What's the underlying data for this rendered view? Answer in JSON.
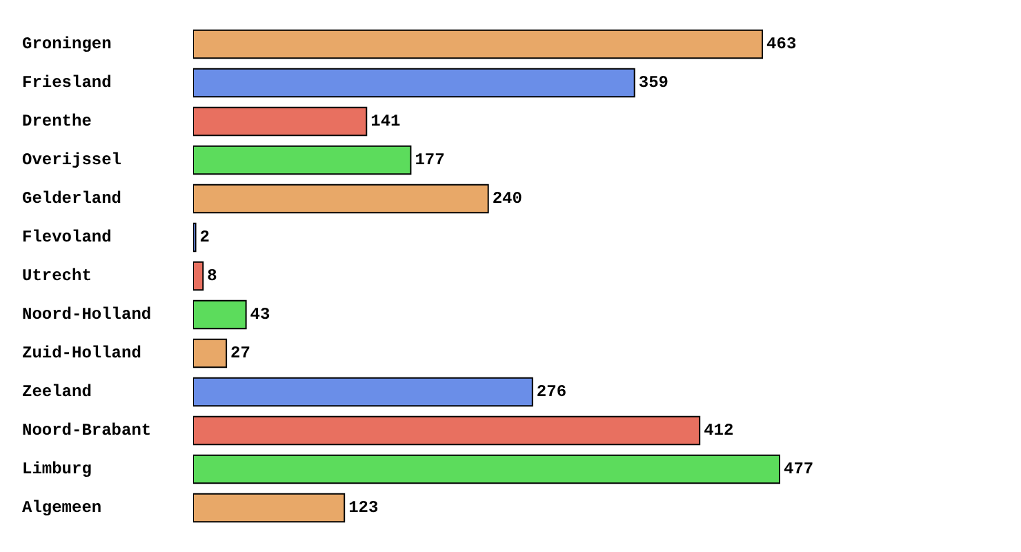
{
  "chart_data": {
    "type": "bar",
    "orientation": "horizontal",
    "categories": [
      "Groningen",
      "Friesland",
      "Drenthe",
      "Overijssel",
      "Gelderland",
      "Flevoland",
      "Utrecht",
      "Noord-Holland",
      "Zuid-Holland",
      "Zeeland",
      "Noord-Brabant",
      "Limburg",
      "Algemeen"
    ],
    "values": [
      463,
      359,
      141,
      177,
      240,
      2,
      8,
      43,
      27,
      276,
      412,
      477,
      123
    ],
    "colors": [
      "#e8a868",
      "#6a8ee8",
      "#e87060",
      "#5cdc5c",
      "#e8a868",
      "#6a8ee8",
      "#e87060",
      "#5cdc5c",
      "#e8a868",
      "#6a8ee8",
      "#e87060",
      "#5cdc5c",
      "#e8a868"
    ],
    "data_labels": true,
    "legend": false,
    "tick_labels": "y"
  }
}
